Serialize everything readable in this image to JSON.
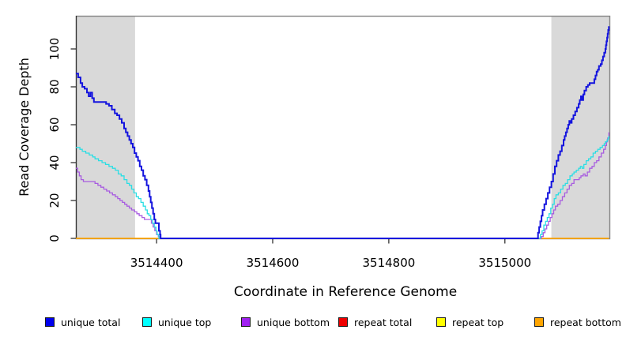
{
  "chart_data": {
    "type": "line",
    "title": "",
    "xlabel": "Coordinate in Reference Genome",
    "ylabel": "Read Coverage Depth",
    "x_range": [
      3514261,
      3515180
    ],
    "y_range": [
      0,
      117.5
    ],
    "x_ticks": [
      "3514400",
      "3514600",
      "3514800",
      "3515000"
    ],
    "x_tick_values": [
      3514400,
      3514600,
      3514800,
      3515000
    ],
    "y_ticks": [
      "0",
      "20",
      "40",
      "60",
      "80",
      "100"
    ],
    "y_tick_values": [
      0,
      20,
      40,
      60,
      80,
      100
    ],
    "grid": false,
    "legend_position": "bottom",
    "band_color": "#D9D9D9",
    "box_color": "#858585",
    "axis_color": "#222222",
    "shaded_regions": [
      {
        "x1": 3514261,
        "x2": 3514363
      },
      {
        "x1": 3515080,
        "x2": 3515180
      }
    ],
    "draw_order": [
      3,
      4,
      5,
      2,
      1,
      0
    ],
    "series": [
      {
        "name": "unique total",
        "key": "unique-total",
        "color": "#1414DE",
        "lw": 2,
        "points": [
          [
            3514261,
            87
          ],
          [
            3514265,
            85
          ],
          [
            3514269,
            82
          ],
          [
            3514272,
            80
          ],
          [
            3514276,
            79
          ],
          [
            3514280,
            77
          ],
          [
            3514283,
            75
          ],
          [
            3514286,
            77
          ],
          [
            3514289,
            74
          ],
          [
            3514292,
            72
          ],
          [
            3514308,
            72
          ],
          [
            3514313,
            71
          ],
          [
            3514318,
            70
          ],
          [
            3514323,
            68
          ],
          [
            3514328,
            66
          ],
          [
            3514332,
            65
          ],
          [
            3514336,
            63
          ],
          [
            3514340,
            61
          ],
          [
            3514344,
            58
          ],
          [
            3514347,
            56
          ],
          [
            3514350,
            54
          ],
          [
            3514353,
            52
          ],
          [
            3514356,
            50
          ],
          [
            3514359,
            48
          ],
          [
            3514362,
            45
          ],
          [
            3514365,
            43
          ],
          [
            3514368,
            41
          ],
          [
            3514371,
            38
          ],
          [
            3514374,
            36
          ],
          [
            3514377,
            33
          ],
          [
            3514380,
            31
          ],
          [
            3514383,
            28
          ],
          [
            3514386,
            25
          ],
          [
            3514388,
            22
          ],
          [
            3514390,
            19
          ],
          [
            3514392,
            16
          ],
          [
            3514394,
            13
          ],
          [
            3514396,
            10
          ],
          [
            3514398,
            8
          ],
          [
            3514402,
            8
          ],
          [
            3514404,
            4
          ],
          [
            3514406,
            2
          ],
          [
            3514407,
            0
          ],
          [
            3515056,
            0
          ],
          [
            3515057,
            3
          ],
          [
            3515059,
            6
          ],
          [
            3515061,
            9
          ],
          [
            3515063,
            12
          ],
          [
            3515065,
            15
          ],
          [
            3515068,
            18
          ],
          [
            3515071,
            21
          ],
          [
            3515074,
            24
          ],
          [
            3515077,
            27
          ],
          [
            3515080,
            30
          ],
          [
            3515083,
            34
          ],
          [
            3515086,
            38
          ],
          [
            3515089,
            41
          ],
          [
            3515092,
            44
          ],
          [
            3515095,
            46
          ],
          [
            3515098,
            49
          ],
          [
            3515101,
            52
          ],
          [
            3515103,
            54
          ],
          [
            3515105,
            56
          ],
          [
            3515107,
            58
          ],
          [
            3515109,
            60
          ],
          [
            3515111,
            62
          ],
          [
            3515113,
            61
          ],
          [
            3515115,
            63
          ],
          [
            3515118,
            65
          ],
          [
            3515121,
            67
          ],
          [
            3515124,
            69
          ],
          [
            3515127,
            71
          ],
          [
            3515129,
            73
          ],
          [
            3515131,
            75
          ],
          [
            3515133,
            73
          ],
          [
            3515135,
            76
          ],
          [
            3515137,
            78
          ],
          [
            3515140,
            80
          ],
          [
            3515143,
            81
          ],
          [
            3515146,
            82
          ],
          [
            3515151,
            82
          ],
          [
            3515154,
            84
          ],
          [
            3515156,
            86
          ],
          [
            3515158,
            88
          ],
          [
            3515160,
            89
          ],
          [
            3515162,
            91
          ],
          [
            3515165,
            92
          ],
          [
            3515167,
            94
          ],
          [
            3515169,
            96
          ],
          [
            3515171,
            98
          ],
          [
            3515173,
            100
          ],
          [
            3515174,
            102
          ],
          [
            3515175,
            104
          ],
          [
            3515176,
            106
          ],
          [
            3515177,
            108
          ],
          [
            3515178,
            110
          ],
          [
            3515179,
            112
          ]
        ]
      },
      {
        "name": "unique top",
        "key": "unique-top",
        "color": "#2BDEE4",
        "lw": 1.3,
        "points": [
          [
            3514261,
            48
          ],
          [
            3514268,
            47
          ],
          [
            3514272,
            46
          ],
          [
            3514278,
            45
          ],
          [
            3514284,
            44
          ],
          [
            3514290,
            43
          ],
          [
            3514294,
            42
          ],
          [
            3514300,
            41
          ],
          [
            3514306,
            40
          ],
          [
            3514312,
            39
          ],
          [
            3514318,
            38
          ],
          [
            3514324,
            37
          ],
          [
            3514329,
            36
          ],
          [
            3514334,
            34
          ],
          [
            3514339,
            33
          ],
          [
            3514344,
            31
          ],
          [
            3514349,
            29
          ],
          [
            3514353,
            28
          ],
          [
            3514357,
            26
          ],
          [
            3514361,
            24
          ],
          [
            3514365,
            22
          ],
          [
            3514369,
            21
          ],
          [
            3514373,
            19
          ],
          [
            3514377,
            17
          ],
          [
            3514381,
            15
          ],
          [
            3514384,
            13
          ],
          [
            3514387,
            12
          ],
          [
            3514390,
            10
          ],
          [
            3514393,
            8
          ],
          [
            3514396,
            6
          ],
          [
            3514399,
            4
          ],
          [
            3514401,
            2
          ],
          [
            3514404,
            0
          ],
          [
            3515059,
            0
          ],
          [
            3515061,
            2
          ],
          [
            3515064,
            4
          ],
          [
            3515067,
            7
          ],
          [
            3515070,
            9
          ],
          [
            3515073,
            11
          ],
          [
            3515076,
            13
          ],
          [
            3515079,
            16
          ],
          [
            3515082,
            18
          ],
          [
            3515085,
            21
          ],
          [
            3515088,
            23
          ],
          [
            3515092,
            24
          ],
          [
            3515096,
            26
          ],
          [
            3515100,
            28
          ],
          [
            3515104,
            29
          ],
          [
            3515108,
            31
          ],
          [
            3515112,
            33
          ],
          [
            3515116,
            34
          ],
          [
            3515119,
            35
          ],
          [
            3515123,
            36
          ],
          [
            3515127,
            37
          ],
          [
            3515130,
            38
          ],
          [
            3515133,
            37
          ],
          [
            3515136,
            39
          ],
          [
            3515140,
            41
          ],
          [
            3515144,
            42
          ],
          [
            3515148,
            43
          ],
          [
            3515152,
            45
          ],
          [
            3515156,
            46
          ],
          [
            3515160,
            47
          ],
          [
            3515164,
            48
          ],
          [
            3515168,
            49
          ],
          [
            3515171,
            50
          ],
          [
            3515173,
            51
          ],
          [
            3515176,
            52
          ],
          [
            3515178,
            53
          ],
          [
            3515179,
            54
          ]
        ]
      },
      {
        "name": "unique bottom",
        "key": "unique-bottom",
        "color": "#A85CE0",
        "lw": 1.3,
        "points": [
          [
            3514261,
            37
          ],
          [
            3514264,
            35
          ],
          [
            3514267,
            33
          ],
          [
            3514270,
            31
          ],
          [
            3514274,
            30
          ],
          [
            3514290,
            30
          ],
          [
            3514294,
            29
          ],
          [
            3514299,
            28
          ],
          [
            3514304,
            27
          ],
          [
            3514309,
            26
          ],
          [
            3514314,
            25
          ],
          [
            3514319,
            24
          ],
          [
            3514324,
            23
          ],
          [
            3514329,
            22
          ],
          [
            3514333,
            21
          ],
          [
            3514337,
            20
          ],
          [
            3514341,
            19
          ],
          [
            3514345,
            18
          ],
          [
            3514349,
            17
          ],
          [
            3514353,
            16
          ],
          [
            3514357,
            15
          ],
          [
            3514362,
            14
          ],
          [
            3514366,
            13
          ],
          [
            3514370,
            12
          ],
          [
            3514375,
            11
          ],
          [
            3514379,
            10
          ],
          [
            3514388,
            10
          ],
          [
            3514391,
            8
          ],
          [
            3514394,
            6
          ],
          [
            3514397,
            4
          ],
          [
            3514400,
            2
          ],
          [
            3514403,
            1
          ],
          [
            3514405,
            0
          ],
          [
            3515061,
            0
          ],
          [
            3515063,
            1
          ],
          [
            3515066,
            3
          ],
          [
            3515069,
            5
          ],
          [
            3515072,
            7
          ],
          [
            3515075,
            9
          ],
          [
            3515078,
            11
          ],
          [
            3515081,
            13
          ],
          [
            3515084,
            15
          ],
          [
            3515087,
            17
          ],
          [
            3515091,
            18
          ],
          [
            3515095,
            20
          ],
          [
            3515099,
            22
          ],
          [
            3515103,
            24
          ],
          [
            3515107,
            26
          ],
          [
            3515111,
            28
          ],
          [
            3515115,
            29
          ],
          [
            3515119,
            31
          ],
          [
            3515124,
            31
          ],
          [
            3515128,
            32
          ],
          [
            3515131,
            33
          ],
          [
            3515135,
            34
          ],
          [
            3515138,
            33
          ],
          [
            3515142,
            35
          ],
          [
            3515146,
            37
          ],
          [
            3515150,
            38
          ],
          [
            3515154,
            40
          ],
          [
            3515158,
            41
          ],
          [
            3515162,
            43
          ],
          [
            3515166,
            45
          ],
          [
            3515170,
            47
          ],
          [
            3515173,
            49
          ],
          [
            3515175,
            51
          ],
          [
            3515177,
            53
          ],
          [
            3515179,
            56
          ]
        ]
      },
      {
        "name": "repeat total",
        "key": "repeat-total",
        "color": "#E00000",
        "lw": 1.3,
        "points": [
          [
            3514261,
            0
          ],
          [
            3515179,
            0
          ]
        ]
      },
      {
        "name": "repeat top",
        "key": "repeat-top",
        "color": "#FFFF00",
        "lw": 1.3,
        "points": [
          [
            3514261,
            0
          ],
          [
            3515179,
            0
          ]
        ]
      },
      {
        "name": "repeat bottom",
        "key": "repeat-bottom",
        "color": "#FFA500",
        "lw": 1.6,
        "points": [
          [
            3514261,
            0
          ],
          [
            3515179,
            0
          ]
        ]
      }
    ],
    "legend_swatch_colors": [
      "#0000EE",
      "#00FFFF",
      "#A020F0",
      "#EE0000",
      "#FFFF00",
      "#FFA500"
    ]
  }
}
